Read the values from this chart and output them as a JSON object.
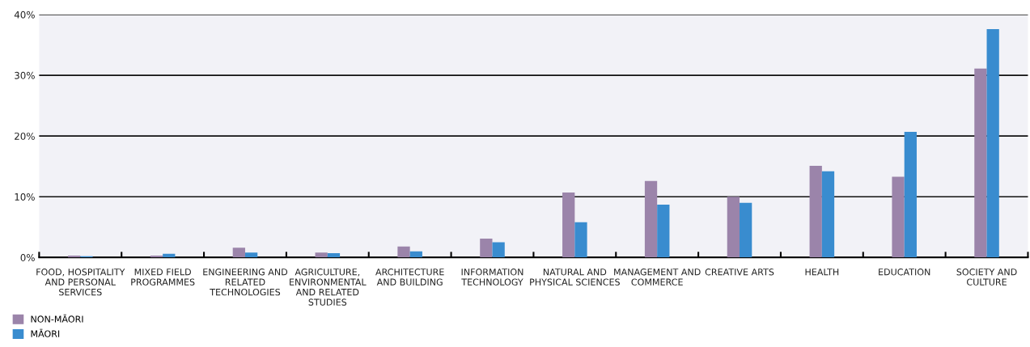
{
  "chart_data": {
    "type": "bar",
    "categories": [
      "FOOD, HOSPITALITY\nAND PERSONAL\nSERVICES",
      "MIXED FIELD\nPROGRAMMES",
      "ENGINEERING AND\nRELATED\nTECHNOLOGIES",
      "AGRICULTURE,\nENVIRONMENTAL\nAND RELATED\nSTUDIES",
      "ARCHITECTURE\nAND BUILDING",
      "INFORMATION\nTECHNOLOGY",
      "NATURAL AND\nPHYSICAL SCIENCES",
      "MANAGEMENT AND\nCOMMERCE",
      "CREATIVE ARTS",
      "HEALTH",
      "EDUCATION",
      "SOCIETY AND\nCULTURE"
    ],
    "series": [
      {
        "name": "NON-MĀORI",
        "color": "#9b84aa",
        "values": [
          0.3,
          0.3,
          1.6,
          0.8,
          1.8,
          3.1,
          10.7,
          12.6,
          10.0,
          15.1,
          13.3,
          31.1
        ]
      },
      {
        "name": "MĀORI",
        "color": "#398ccf",
        "values": [
          0.2,
          0.6,
          0.8,
          0.7,
          1.0,
          2.5,
          5.8,
          8.7,
          9.0,
          14.2,
          20.7,
          37.6
        ]
      }
    ],
    "ylim": [
      0,
      40
    ],
    "yticks": [
      {
        "value": 0,
        "label": "0%"
      },
      {
        "value": 10,
        "label": "10%"
      },
      {
        "value": 20,
        "label": "20%"
      },
      {
        "value": 30,
        "label": "30%"
      },
      {
        "value": 40,
        "label": "40%"
      }
    ],
    "grid": "y",
    "legend": "bottom left"
  }
}
